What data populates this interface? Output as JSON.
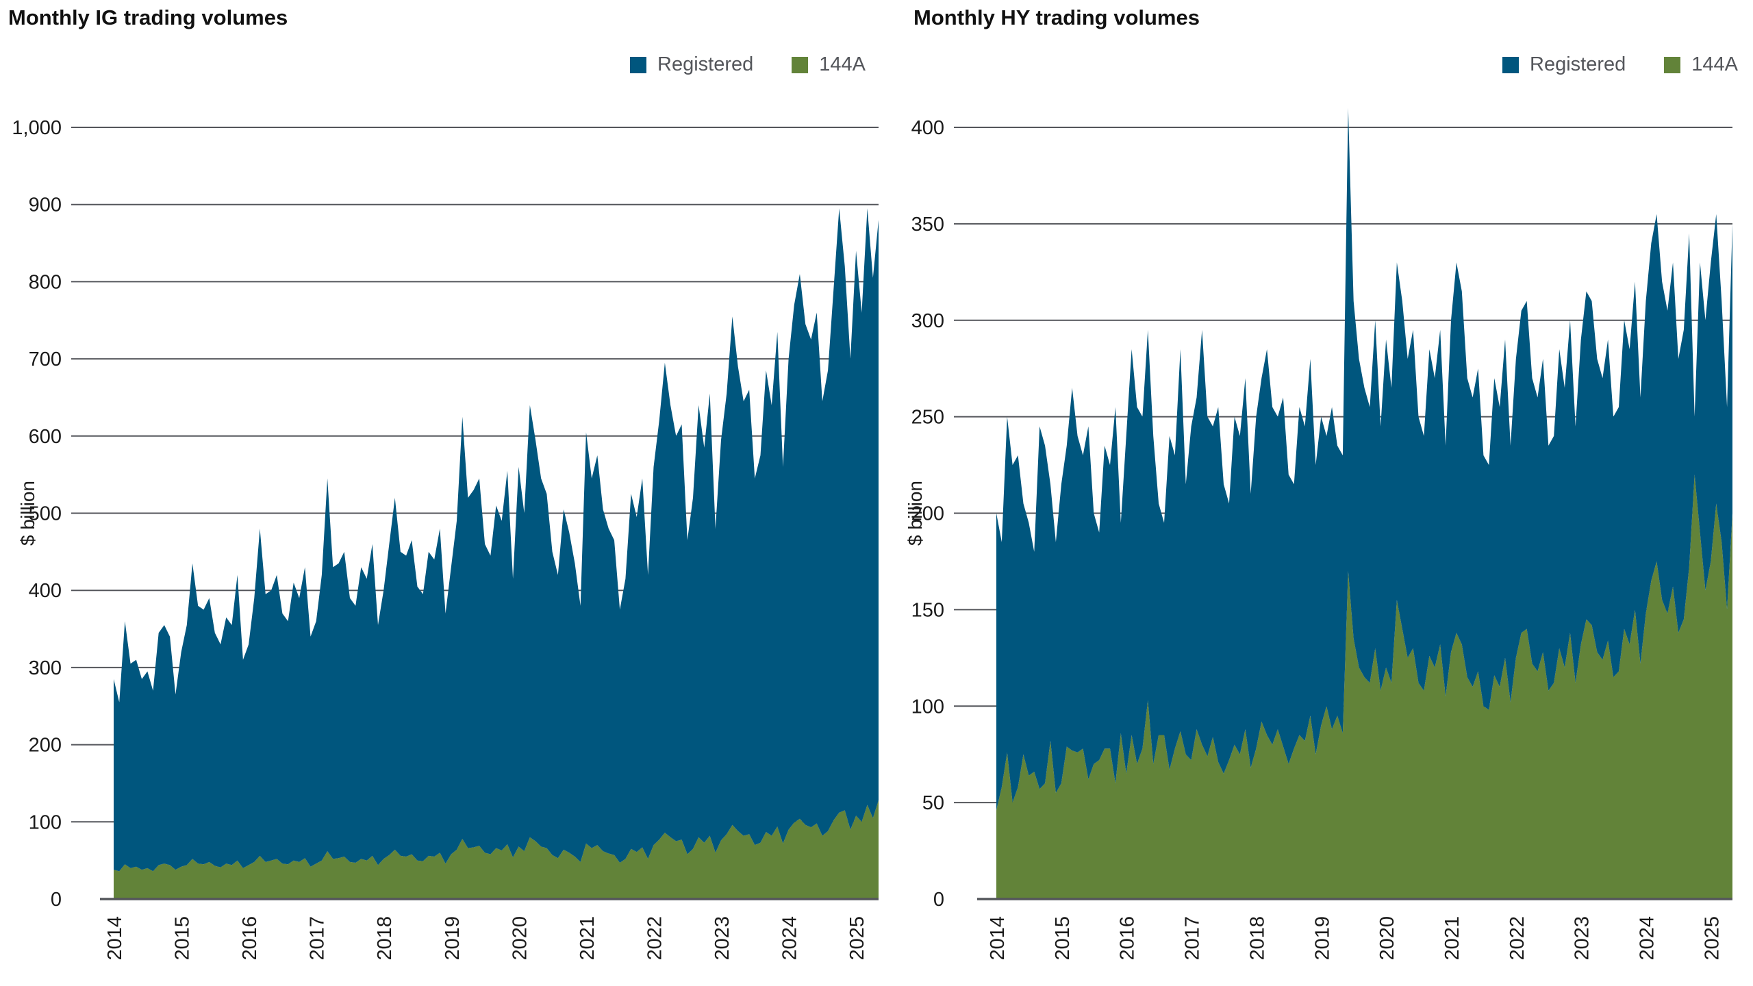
{
  "chart_data": [
    {
      "type": "area",
      "stacked": true,
      "title": "Monthly IG trading volumes",
      "ylabel": "$ billion",
      "xlabel": "",
      "x_start_year": 2014,
      "x_frequency": "monthly",
      "n_points": 137,
      "x_tick_years": [
        2014,
        2015,
        2016,
        2017,
        2018,
        2019,
        2020,
        2021,
        2022,
        2023,
        2024,
        2025
      ],
      "ylim": [
        0,
        1000
      ],
      "y_tick_step": 100,
      "grid": true,
      "legend_position": "top-right",
      "legend": [
        {
          "label": "Registered",
          "color": "#00567e"
        },
        {
          "label": "144A",
          "color": "#628339"
        }
      ],
      "series": [
        {
          "name": "144A",
          "color": "#628339",
          "stack_order": "bottom",
          "values": [
            38,
            36,
            45,
            40,
            42,
            38,
            40,
            36,
            44,
            46,
            44,
            38,
            42,
            44,
            52,
            46,
            45,
            48,
            43,
            41,
            46,
            44,
            50,
            40,
            44,
            48,
            56,
            48,
            50,
            52,
            46,
            45,
            50,
            48,
            53,
            42,
            46,
            50,
            62,
            52,
            53,
            55,
            48,
            47,
            52,
            50,
            56,
            44,
            52,
            57,
            64,
            56,
            55,
            58,
            50,
            49,
            56,
            55,
            60,
            46,
            58,
            64,
            78,
            66,
            67,
            69,
            60,
            58,
            66,
            63,
            71,
            54,
            68,
            62,
            80,
            75,
            68,
            66,
            57,
            53,
            64,
            60,
            55,
            48,
            72,
            66,
            70,
            62,
            59,
            57,
            47,
            52,
            65,
            61,
            67,
            52,
            70,
            77,
            86,
            80,
            75,
            77,
            58,
            65,
            80,
            73,
            82,
            60,
            76,
            84,
            96,
            88,
            82,
            84,
            70,
            73,
            87,
            82,
            94,
            72,
            90,
            99,
            104,
            96,
            93,
            98,
            82,
            88,
            102,
            112,
            115,
            90,
            108,
            100,
            122,
            105,
            128
          ]
        },
        {
          "name": "Registered",
          "color": "#00567e",
          "stack_order": "top",
          "values": [
            247,
            219,
            315,
            265,
            268,
            247,
            255,
            234,
            301,
            309,
            296,
            227,
            278,
            311,
            383,
            334,
            330,
            342,
            302,
            289,
            319,
            311,
            370,
            270,
            286,
            342,
            424,
            347,
            350,
            368,
            324,
            315,
            360,
            342,
            377,
            298,
            314,
            370,
            483,
            378,
            382,
            395,
            342,
            333,
            378,
            365,
            404,
            311,
            348,
            403,
            456,
            394,
            390,
            407,
            355,
            346,
            394,
            385,
            420,
            324,
            372,
            426,
            547,
            454,
            463,
            476,
            400,
            387,
            444,
            427,
            484,
            361,
            492,
            438,
            560,
            520,
            477,
            459,
            393,
            367,
            441,
            415,
            380,
            332,
            533,
            479,
            505,
            443,
            421,
            408,
            328,
            363,
            460,
            434,
            478,
            368,
            490,
            543,
            609,
            560,
            525,
            538,
            407,
            455,
            560,
            512,
            573,
            420,
            519,
            571,
            659,
            602,
            563,
            576,
            475,
            502,
            598,
            558,
            641,
            488,
            610,
            671,
            706,
            649,
            632,
            662,
            563,
            597,
            688,
            783,
            705,
            610,
            732,
            660,
            773,
            700,
            752
          ]
        }
      ]
    },
    {
      "type": "area",
      "stacked": true,
      "title": "Monthly HY trading volumes",
      "ylabel": "$ billion",
      "xlabel": "",
      "x_start_year": 2014,
      "x_frequency": "monthly",
      "n_points": 137,
      "x_tick_years": [
        2014,
        2015,
        2016,
        2017,
        2018,
        2019,
        2020,
        2021,
        2022,
        2023,
        2024,
        2025
      ],
      "ylim": [
        0,
        400
      ],
      "y_tick_step": 50,
      "grid": true,
      "legend_position": "top-right",
      "legend": [
        {
          "label": "Registered",
          "color": "#00567e"
        },
        {
          "label": "144A",
          "color": "#628339"
        }
      ],
      "series": [
        {
          "name": "144A",
          "color": "#628339",
          "stack_order": "bottom",
          "values": [
            46,
            58,
            76,
            50,
            58,
            75,
            64,
            66,
            57,
            60,
            82,
            55,
            60,
            79,
            77,
            76,
            78,
            62,
            70,
            72,
            78,
            78,
            60,
            86,
            65,
            85,
            70,
            78,
            103,
            70,
            85,
            85,
            67,
            78,
            87,
            75,
            72,
            88,
            80,
            74,
            84,
            71,
            65,
            72,
            80,
            75,
            88,
            68,
            78,
            92,
            85,
            80,
            88,
            79,
            70,
            78,
            85,
            82,
            95,
            75,
            90,
            100,
            88,
            95,
            86,
            170,
            135,
            120,
            115,
            112,
            130,
            108,
            120,
            112,
            155,
            140,
            125,
            130,
            112,
            108,
            126,
            120,
            132,
            105,
            128,
            138,
            132,
            115,
            110,
            118,
            100,
            98,
            116,
            110,
            125,
            102,
            125,
            138,
            140,
            122,
            118,
            128,
            108,
            112,
            130,
            120,
            138,
            112,
            132,
            145,
            142,
            128,
            124,
            134,
            115,
            118,
            140,
            132,
            150,
            122,
            148,
            165,
            175,
            155,
            148,
            162,
            138,
            145,
            172,
            220,
            190,
            160,
            175,
            205,
            185,
            150,
            200
          ]
        },
        {
          "name": "Registered",
          "color": "#00567e",
          "stack_order": "top",
          "values": [
            154,
            127,
            174,
            175,
            172,
            130,
            131,
            114,
            188,
            175,
            133,
            130,
            155,
            156,
            188,
            164,
            152,
            183,
            130,
            118,
            157,
            147,
            195,
            109,
            175,
            200,
            185,
            172,
            192,
            170,
            120,
            110,
            173,
            152,
            198,
            140,
            173,
            172,
            215,
            176,
            161,
            184,
            150,
            133,
            170,
            165,
            182,
            142,
            172,
            178,
            200,
            175,
            162,
            181,
            150,
            137,
            170,
            163,
            185,
            150,
            160,
            140,
            167,
            140,
            144,
            240,
            175,
            160,
            150,
            143,
            170,
            137,
            170,
            153,
            175,
            170,
            155,
            165,
            138,
            132,
            159,
            150,
            163,
            130,
            172,
            192,
            183,
            155,
            150,
            157,
            130,
            127,
            154,
            145,
            165,
            133,
            155,
            167,
            170,
            148,
            142,
            152,
            127,
            128,
            155,
            145,
            162,
            133,
            158,
            170,
            168,
            152,
            146,
            156,
            135,
            137,
            160,
            153,
            170,
            138,
            162,
            175,
            180,
            165,
            157,
            168,
            142,
            150,
            173,
            30,
            140,
            140,
            155,
            150,
            125,
            105,
            150
          ]
        }
      ]
    }
  ],
  "style": {
    "grid_color": "#54565b",
    "axis_color": "#54565b",
    "tick_label_color": "#1a1a1a",
    "legend_label_color": "#54565b",
    "registered_color": "#00567e",
    "a144_color": "#628339"
  }
}
